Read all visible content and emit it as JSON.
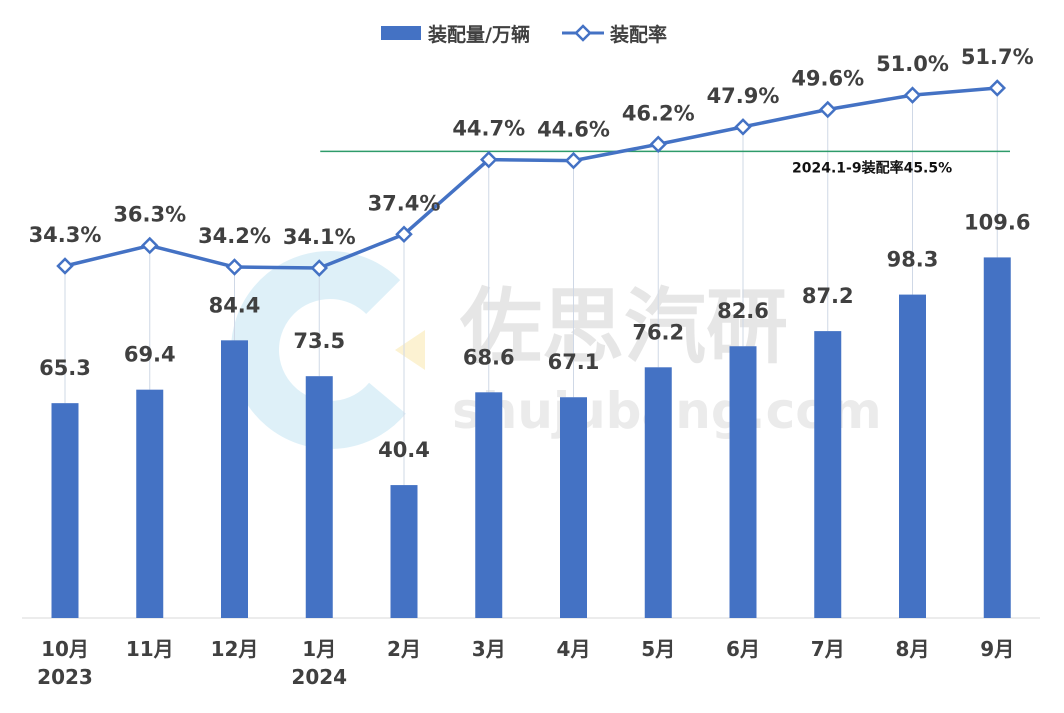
{
  "chart_data": {
    "type": "bar",
    "title": "",
    "categories": [
      "10月",
      "11月",
      "12月",
      "1月",
      "2月",
      "3月",
      "4月",
      "5月",
      "6月",
      "7月",
      "8月",
      "9月"
    ],
    "category_sublabels": [
      "2023",
      "",
      "",
      "2024",
      "",
      "",
      "",
      "",
      "",
      "",
      "",
      ""
    ],
    "series": [
      {
        "name": "装配量/万辆",
        "type": "bar",
        "color": "#4472C4",
        "values": [
          65.3,
          69.4,
          84.4,
          73.5,
          40.4,
          68.6,
          67.1,
          76.2,
          82.6,
          87.2,
          98.3,
          109.6
        ],
        "labels": [
          "65.3",
          "69.4",
          "84.4",
          "73.5",
          "40.4",
          "68.6",
          "67.1",
          "76.2",
          "82.6",
          "87.2",
          "98.3",
          "109.6"
        ]
      },
      {
        "name": "装配率",
        "type": "line",
        "color": "#4472C4",
        "unit": "%",
        "values": [
          34.3,
          36.3,
          34.2,
          34.1,
          37.4,
          44.7,
          44.6,
          46.2,
          47.9,
          49.6,
          51.0,
          51.7
        ],
        "labels": [
          "34.3%",
          "36.3%",
          "34.2%",
          "34.1%",
          "37.4%",
          "44.7%",
          "44.6%",
          "46.2%",
          "47.9%",
          "49.6%",
          "51.0%",
          "51.7%"
        ]
      }
    ],
    "reference_line": {
      "value": 45.5,
      "label": "2024.1-9装配率45.5%",
      "color": "#2E9B6A",
      "start_category": "1月"
    },
    "legend_placement": "top-center",
    "grid": false,
    "watermark": {
      "title": "佐思汽研",
      "subtitle": "shujubang.com"
    }
  }
}
